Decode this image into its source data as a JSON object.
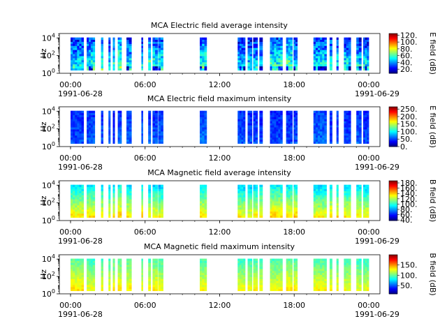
{
  "chart_data": [
    {
      "type": "heatmap",
      "title": "MCA  Electric field average intensity",
      "ylabel": "Hz",
      "ytick_labels": [
        "10^0",
        "10^2",
        "10^4"
      ],
      "ylim_exponent": [
        0,
        4.5
      ],
      "xtick_labels": [
        "00:00",
        "06:00",
        "12:00",
        "18:00",
        "00:00"
      ],
      "xdate_labels": [
        "1991-06-28",
        "1991-06-29"
      ],
      "colorbar": {
        "label": "E field (dB)",
        "ticks": [
          "120.",
          "100.",
          "80.",
          "60.",
          "40.",
          "20."
        ],
        "tick_values": [
          120,
          100,
          80,
          60,
          40,
          20
        ],
        "range": [
          8,
          125
        ]
      },
      "data_profile": {
        "low_freq_level": 60,
        "high_freq_level": 30,
        "variability": 28,
        "low_level_gaps": true
      }
    },
    {
      "type": "heatmap",
      "title": "MCA  Electric field maximum intensity",
      "ylabel": "Hz",
      "ytick_labels": [
        "10^0",
        "10^2",
        "10^4"
      ],
      "ylim_exponent": [
        0,
        4.5
      ],
      "xtick_labels": [
        "00:00",
        "06:00",
        "12:00",
        "18:00",
        "00:00"
      ],
      "xdate_labels": [
        "1991-06-28",
        "1991-06-29"
      ],
      "colorbar": {
        "label": "E field (dB)",
        "ticks": [
          "250.",
          "200.",
          "150.",
          "100.",
          "50.",
          "0."
        ],
        "tick_values": [
          250,
          200,
          150,
          100,
          50,
          0
        ],
        "range": [
          0,
          265
        ]
      },
      "data_profile": {
        "low_freq_level": 55,
        "high_freq_level": 45,
        "variability": 25,
        "low_level_gaps": false
      }
    },
    {
      "type": "heatmap",
      "title": "MCA  Magnetic field average intensity",
      "ylabel": "Hz",
      "ytick_labels": [
        "10^0",
        "10^2",
        "10^4"
      ],
      "ylim_exponent": [
        0,
        4.5
      ],
      "xtick_labels": [
        "00:00",
        "06:00",
        "12:00",
        "18:00",
        "00:00"
      ],
      "xdate_labels": [
        "1991-06-28",
        "1991-06-29"
      ],
      "colorbar": {
        "label": "B field (dB)",
        "ticks": [
          "180.",
          "160.",
          "140.",
          "120.",
          "100.",
          "80.",
          "60.",
          "40."
        ],
        "tick_values": [
          180,
          160,
          140,
          120,
          100,
          80,
          60,
          40
        ],
        "range": [
          38,
          188
        ]
      },
      "data_profile": {
        "low_freq_level": 135,
        "high_freq_level": 90,
        "variability": 14,
        "low_level_gaps": false
      }
    },
    {
      "type": "heatmap",
      "title": "MCA  Magnetic field maximum intensity",
      "ylabel": "Hz",
      "ytick_labels": [
        "10^0",
        "10^2",
        "10^4"
      ],
      "ylim_exponent": [
        0,
        4.5
      ],
      "xtick_labels": [
        "00:00",
        "06:00",
        "12:00",
        "18:00",
        "00:00"
      ],
      "xdate_labels": [
        "1991-06-28",
        "1991-06-29"
      ],
      "colorbar": {
        "label": "B field (dB)",
        "ticks": [
          "150.",
          "100.",
          "50."
        ],
        "tick_values": [
          150,
          100,
          50
        ],
        "range": [
          10,
          200
        ]
      },
      "data_profile": {
        "low_freq_level": 130,
        "high_freq_level": 95,
        "variability": 14,
        "low_level_gaps": false
      }
    }
  ],
  "data_coverage_utc_hours": [
    [
      0.0,
      1.05
    ],
    [
      1.3,
      1.95
    ],
    [
      2.45,
      2.62
    ],
    [
      3.05,
      3.2
    ],
    [
      3.4,
      3.55
    ],
    [
      3.8,
      4.1
    ],
    [
      4.5,
      4.9
    ],
    [
      5.7,
      5.82
    ],
    [
      6.25,
      6.45
    ],
    [
      6.6,
      7.0
    ],
    [
      7.05,
      7.45
    ],
    [
      10.4,
      10.95
    ],
    [
      13.45,
      14.05
    ],
    [
      14.25,
      14.6
    ],
    [
      14.7,
      15.05
    ],
    [
      15.2,
      15.45
    ],
    [
      16.05,
      17.05
    ],
    [
      17.35,
      17.85
    ],
    [
      17.95,
      18.25
    ],
    [
      19.55,
      20.6
    ],
    [
      20.85,
      21.05
    ],
    [
      21.4,
      21.55
    ],
    [
      22.0,
      22.55
    ],
    [
      23.0,
      23.4
    ],
    [
      23.55,
      24.0
    ]
  ]
}
